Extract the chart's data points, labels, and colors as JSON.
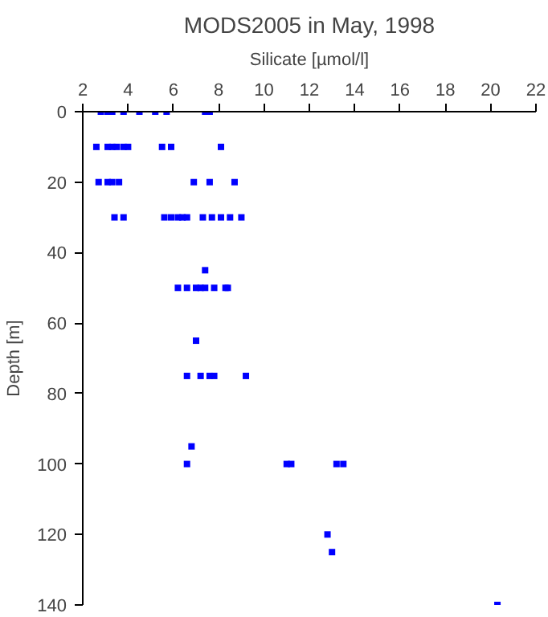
{
  "chart_data": {
    "type": "scatter",
    "title": "MODS2005 in May, 1998",
    "xlabel": "Silicate [µmol/l]",
    "ylabel": "Depth [m]",
    "x": [
      2.8,
      3.1,
      3.3,
      3.8,
      4.5,
      5.2,
      5.7,
      7.4,
      7.6,
      2.6,
      3.1,
      3.3,
      3.5,
      3.8,
      4.0,
      5.5,
      5.9,
      8.1,
      2.7,
      3.1,
      3.3,
      3.6,
      6.9,
      7.6,
      8.7,
      3.4,
      3.8,
      5.6,
      5.9,
      6.2,
      6.4,
      6.6,
      7.3,
      7.7,
      8.1,
      8.5,
      9.0,
      7.4,
      6.2,
      6.6,
      7.0,
      7.2,
      7.4,
      7.8,
      8.3,
      8.4,
      7.0,
      6.6,
      7.2,
      7.6,
      7.8,
      9.2,
      6.8,
      6.6,
      11.0,
      11.2,
      13.2,
      13.5,
      12.8,
      13.0,
      20.3
    ],
    "values": [
      0,
      0,
      0,
      0,
      0,
      0,
      0,
      0,
      0,
      10,
      10,
      10,
      10,
      10,
      10,
      10,
      10,
      10,
      20,
      20,
      20,
      20,
      20,
      20,
      20,
      30,
      30,
      30,
      30,
      30,
      30,
      30,
      30,
      30,
      30,
      30,
      30,
      45,
      50,
      50,
      50,
      50,
      50,
      50,
      50,
      50,
      65,
      75,
      75,
      75,
      75,
      75,
      95,
      100,
      100,
      100,
      100,
      100,
      120,
      125,
      140
    ],
    "color": "#0000ff",
    "marker": "square",
    "grid": false,
    "legend": false,
    "xlim": [
      2,
      22
    ],
    "xticks": [
      2,
      4,
      6,
      8,
      10,
      12,
      14,
      16,
      18,
      20,
      22
    ],
    "ylim": [
      140,
      0
    ],
    "yticks": [
      0,
      20,
      40,
      60,
      80,
      100,
      120,
      140
    ]
  }
}
